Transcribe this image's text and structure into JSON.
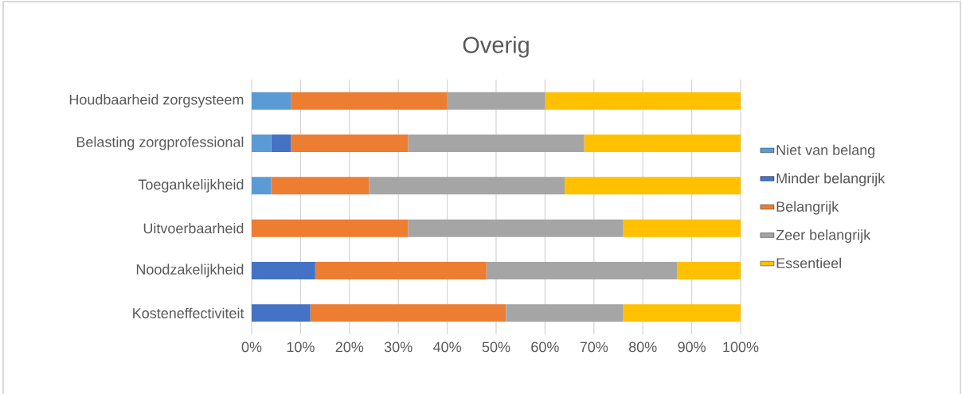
{
  "chart_data": {
    "type": "bar",
    "title": "Overig",
    "orientation": "horizontal",
    "stacked": true,
    "categories": [
      "Houdbaarheid zorgsysteem",
      "Belasting zorgprofessional",
      "Toegankelijkheid",
      "Uitvoerbaarheid",
      "Noodzakelijkheid",
      "Kosteneffectiviteit"
    ],
    "series": [
      {
        "name": "Niet van belang",
        "color": "#5b9bd5",
        "values": [
          8,
          4,
          4,
          0,
          0,
          0
        ]
      },
      {
        "name": "Minder belangrijk",
        "color": "#4472c4",
        "values": [
          0,
          4,
          0,
          0,
          13,
          12
        ]
      },
      {
        "name": "Belangrijk",
        "color": "#ed7d31",
        "values": [
          32,
          24,
          20,
          32,
          35,
          40
        ]
      },
      {
        "name": "Zeer belangrijk",
        "color": "#a5a5a5",
        "values": [
          20,
          36,
          40,
          44,
          39,
          24
        ]
      },
      {
        "name": "Essentieel",
        "color": "#ffc000",
        "values": [
          40,
          32,
          36,
          24,
          13,
          24
        ]
      }
    ],
    "xlim": [
      0,
      100
    ],
    "xticks": [
      {
        "value": 0,
        "label": "0%"
      },
      {
        "value": 10,
        "label": "10%"
      },
      {
        "value": 20,
        "label": "20%"
      },
      {
        "value": 30,
        "label": "30%"
      },
      {
        "value": 40,
        "label": "40%"
      },
      {
        "value": 50,
        "label": "50%"
      },
      {
        "value": 60,
        "label": "60%"
      },
      {
        "value": 70,
        "label": "70%"
      },
      {
        "value": 80,
        "label": "80%"
      },
      {
        "value": 90,
        "label": "90%"
      },
      {
        "value": 100,
        "label": "100%"
      }
    ],
    "grid": "x",
    "legend": "right"
  }
}
